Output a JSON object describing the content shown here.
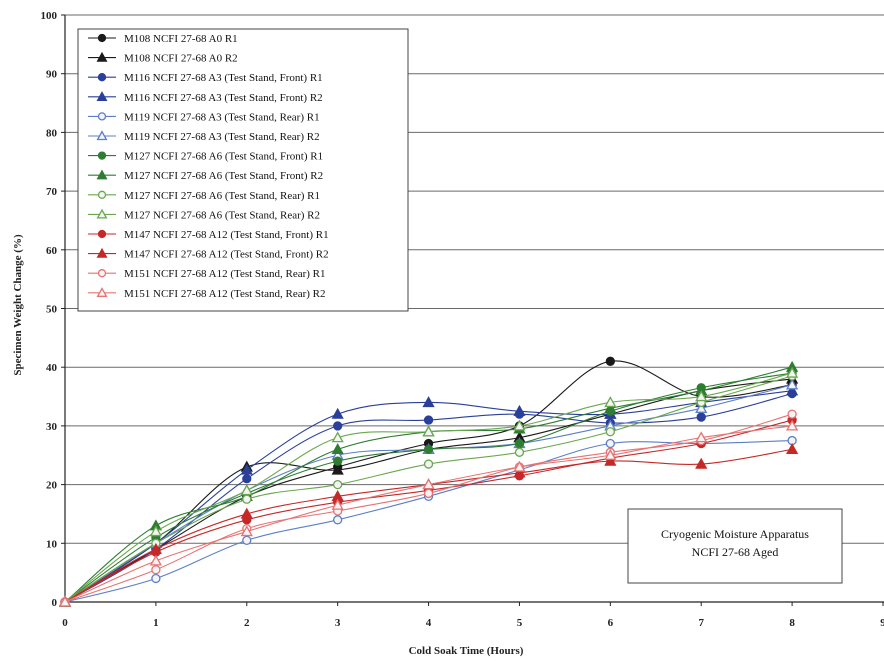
{
  "chart_data": {
    "type": "line",
    "xlabel": "Cold Soak Time (Hours)",
    "ylabel": "Specimen Weight Change (%)",
    "xlim": [
      0,
      9
    ],
    "ylim": [
      0,
      100
    ],
    "x_ticks": [
      "0",
      "1",
      "2",
      "3",
      "4",
      "5",
      "6",
      "7",
      "8",
      "9"
    ],
    "y_ticks": [
      "0",
      "10",
      "20",
      "30",
      "40",
      "50",
      "60",
      "70",
      "80",
      "90",
      "100"
    ],
    "grid": "horizontal",
    "legend_position": "top-left",
    "annotation": [
      "Cryogenic Moisture Apparatus",
      "NCFI 27-68 Aged"
    ],
    "series": [
      {
        "name": "M108 NCFI 27-68 A0 R1",
        "color": "#1a1a1a",
        "marker": "circle",
        "filled": true,
        "points": [
          [
            0,
            0
          ],
          [
            1,
            9
          ],
          [
            2,
            18
          ],
          [
            3,
            23
          ],
          [
            4,
            27
          ],
          [
            5,
            30
          ],
          [
            6,
            41
          ],
          [
            7,
            35
          ],
          [
            8,
            37
          ]
        ]
      },
      {
        "name": "M108 NCFI 27-68 A0 R2",
        "color": "#1a1a1a",
        "marker": "triangle",
        "filled": true,
        "points": [
          [
            0,
            0
          ],
          [
            1,
            10
          ],
          [
            2,
            23
          ],
          [
            3,
            22.5
          ],
          [
            4,
            26
          ],
          [
            5,
            28
          ],
          [
            6,
            32
          ],
          [
            7,
            36
          ],
          [
            8,
            38
          ]
        ]
      },
      {
        "name": "M116 NCFI 27-68 A3 (Test Stand, Front) R1",
        "color": "#2a3f9a",
        "marker": "circle",
        "filled": true,
        "points": [
          [
            0,
            0
          ],
          [
            1,
            9
          ],
          [
            2,
            21
          ],
          [
            3,
            30
          ],
          [
            4,
            31
          ],
          [
            5,
            32
          ],
          [
            6,
            30.5
          ],
          [
            7,
            31.5
          ],
          [
            8,
            35.5
          ]
        ]
      },
      {
        "name": "M116 NCFI 27-68 A3 (Test Stand, Front) R2",
        "color": "#2a3f9a",
        "marker": "triangle",
        "filled": true,
        "points": [
          [
            0,
            0
          ],
          [
            1,
            10
          ],
          [
            2,
            22.5
          ],
          [
            3,
            32
          ],
          [
            4,
            34
          ],
          [
            5,
            32.5
          ],
          [
            6,
            32
          ],
          [
            7,
            34
          ],
          [
            8,
            36
          ]
        ]
      },
      {
        "name": "M119 NCFI 27-68 A3 (Test Stand, Rear) R1",
        "color": "#5b7fc7",
        "marker": "circle",
        "filled": false,
        "points": [
          [
            0,
            0
          ],
          [
            1,
            4
          ],
          [
            2,
            10.5
          ],
          [
            3,
            14
          ],
          [
            4,
            18
          ],
          [
            5,
            22.5
          ],
          [
            6,
            27
          ],
          [
            7,
            27
          ],
          [
            8,
            27.5
          ]
        ]
      },
      {
        "name": "M119 NCFI 27-68 A3 (Test Stand, Rear) R2",
        "color": "#5b7fc7",
        "marker": "triangle",
        "filled": false,
        "points": [
          [
            0,
            0
          ],
          [
            1,
            10
          ],
          [
            2,
            19
          ],
          [
            3,
            25
          ],
          [
            4,
            26
          ],
          [
            5,
            27
          ],
          [
            6,
            30
          ],
          [
            7,
            33
          ],
          [
            8,
            37
          ]
        ]
      },
      {
        "name": "M127 NCFI 27-68 A6 (Test Stand, Front) R1",
        "color": "#2e7d32",
        "marker": "circle",
        "filled": true,
        "points": [
          [
            0,
            0
          ],
          [
            1,
            11
          ],
          [
            2,
            18.5
          ],
          [
            3,
            24
          ],
          [
            4,
            26
          ],
          [
            5,
            27
          ],
          [
            6,
            32.5
          ],
          [
            7,
            36.5
          ],
          [
            8,
            39
          ]
        ]
      },
      {
        "name": "M127 NCFI 27-68 A6 (Test Stand, Front) R2",
        "color": "#2e7d32",
        "marker": "triangle",
        "filled": true,
        "points": [
          [
            0,
            0
          ],
          [
            1,
            13
          ],
          [
            2,
            18
          ],
          [
            3,
            26
          ],
          [
            4,
            29
          ],
          [
            5,
            29.5
          ],
          [
            6,
            33
          ],
          [
            7,
            36
          ],
          [
            8,
            40
          ]
        ]
      },
      {
        "name": "M127 NCFI 27-68 A6 (Test Stand, Rear) R1",
        "color": "#6aa84f",
        "marker": "circle",
        "filled": false,
        "points": [
          [
            0,
            0
          ],
          [
            1,
            10
          ],
          [
            2,
            17.5
          ],
          [
            3,
            20
          ],
          [
            4,
            23.5
          ],
          [
            5,
            25.5
          ],
          [
            6,
            29
          ],
          [
            7,
            34
          ],
          [
            8,
            38.5
          ]
        ]
      },
      {
        "name": "M127 NCFI 27-68 A6 (Test Stand, Rear) R2",
        "color": "#6aa84f",
        "marker": "triangle",
        "filled": false,
        "points": [
          [
            0,
            0
          ],
          [
            1,
            12
          ],
          [
            2,
            19
          ],
          [
            3,
            28
          ],
          [
            4,
            29
          ],
          [
            5,
            30
          ],
          [
            6,
            34
          ],
          [
            7,
            35
          ],
          [
            8,
            39
          ]
        ]
      },
      {
        "name": "M147 NCFI 27-68 A12 (Test Stand, Front) R1",
        "color": "#c62828",
        "marker": "circle",
        "filled": true,
        "points": [
          [
            0,
            0
          ],
          [
            1,
            8.5
          ],
          [
            2,
            14
          ],
          [
            3,
            17
          ],
          [
            4,
            19
          ],
          [
            5,
            21.5
          ],
          [
            6,
            24.5
          ],
          [
            7,
            27
          ],
          [
            8,
            31
          ]
        ]
      },
      {
        "name": "M147 NCFI 27-68 A12 (Test Stand, Front) R2",
        "color": "#c62828",
        "marker": "triangle",
        "filled": true,
        "points": [
          [
            0,
            0
          ],
          [
            1,
            9
          ],
          [
            2,
            15
          ],
          [
            3,
            18
          ],
          [
            4,
            20
          ],
          [
            5,
            22
          ],
          [
            6,
            24
          ],
          [
            7,
            23.5
          ],
          [
            8,
            26
          ]
        ]
      },
      {
        "name": "M151 NCFI 27-68 A12 (Test Stand, Rear) R1",
        "color": "#e57373",
        "marker": "circle",
        "filled": false,
        "points": [
          [
            0,
            0
          ],
          [
            1,
            5.5
          ],
          [
            2,
            12.5
          ],
          [
            3,
            15.5
          ],
          [
            4,
            18.5
          ],
          [
            5,
            23
          ],
          [
            6,
            25.5
          ],
          [
            7,
            27.5
          ],
          [
            8,
            32
          ]
        ]
      },
      {
        "name": "M151 NCFI 27-68 A12 (Test Stand, Rear) R2",
        "color": "#e57373",
        "marker": "triangle",
        "filled": false,
        "points": [
          [
            0,
            0
          ],
          [
            1,
            7
          ],
          [
            2,
            12
          ],
          [
            3,
            16.5
          ],
          [
            4,
            20
          ],
          [
            5,
            23
          ],
          [
            6,
            25
          ],
          [
            7,
            28
          ],
          [
            8,
            30
          ]
        ]
      }
    ]
  }
}
